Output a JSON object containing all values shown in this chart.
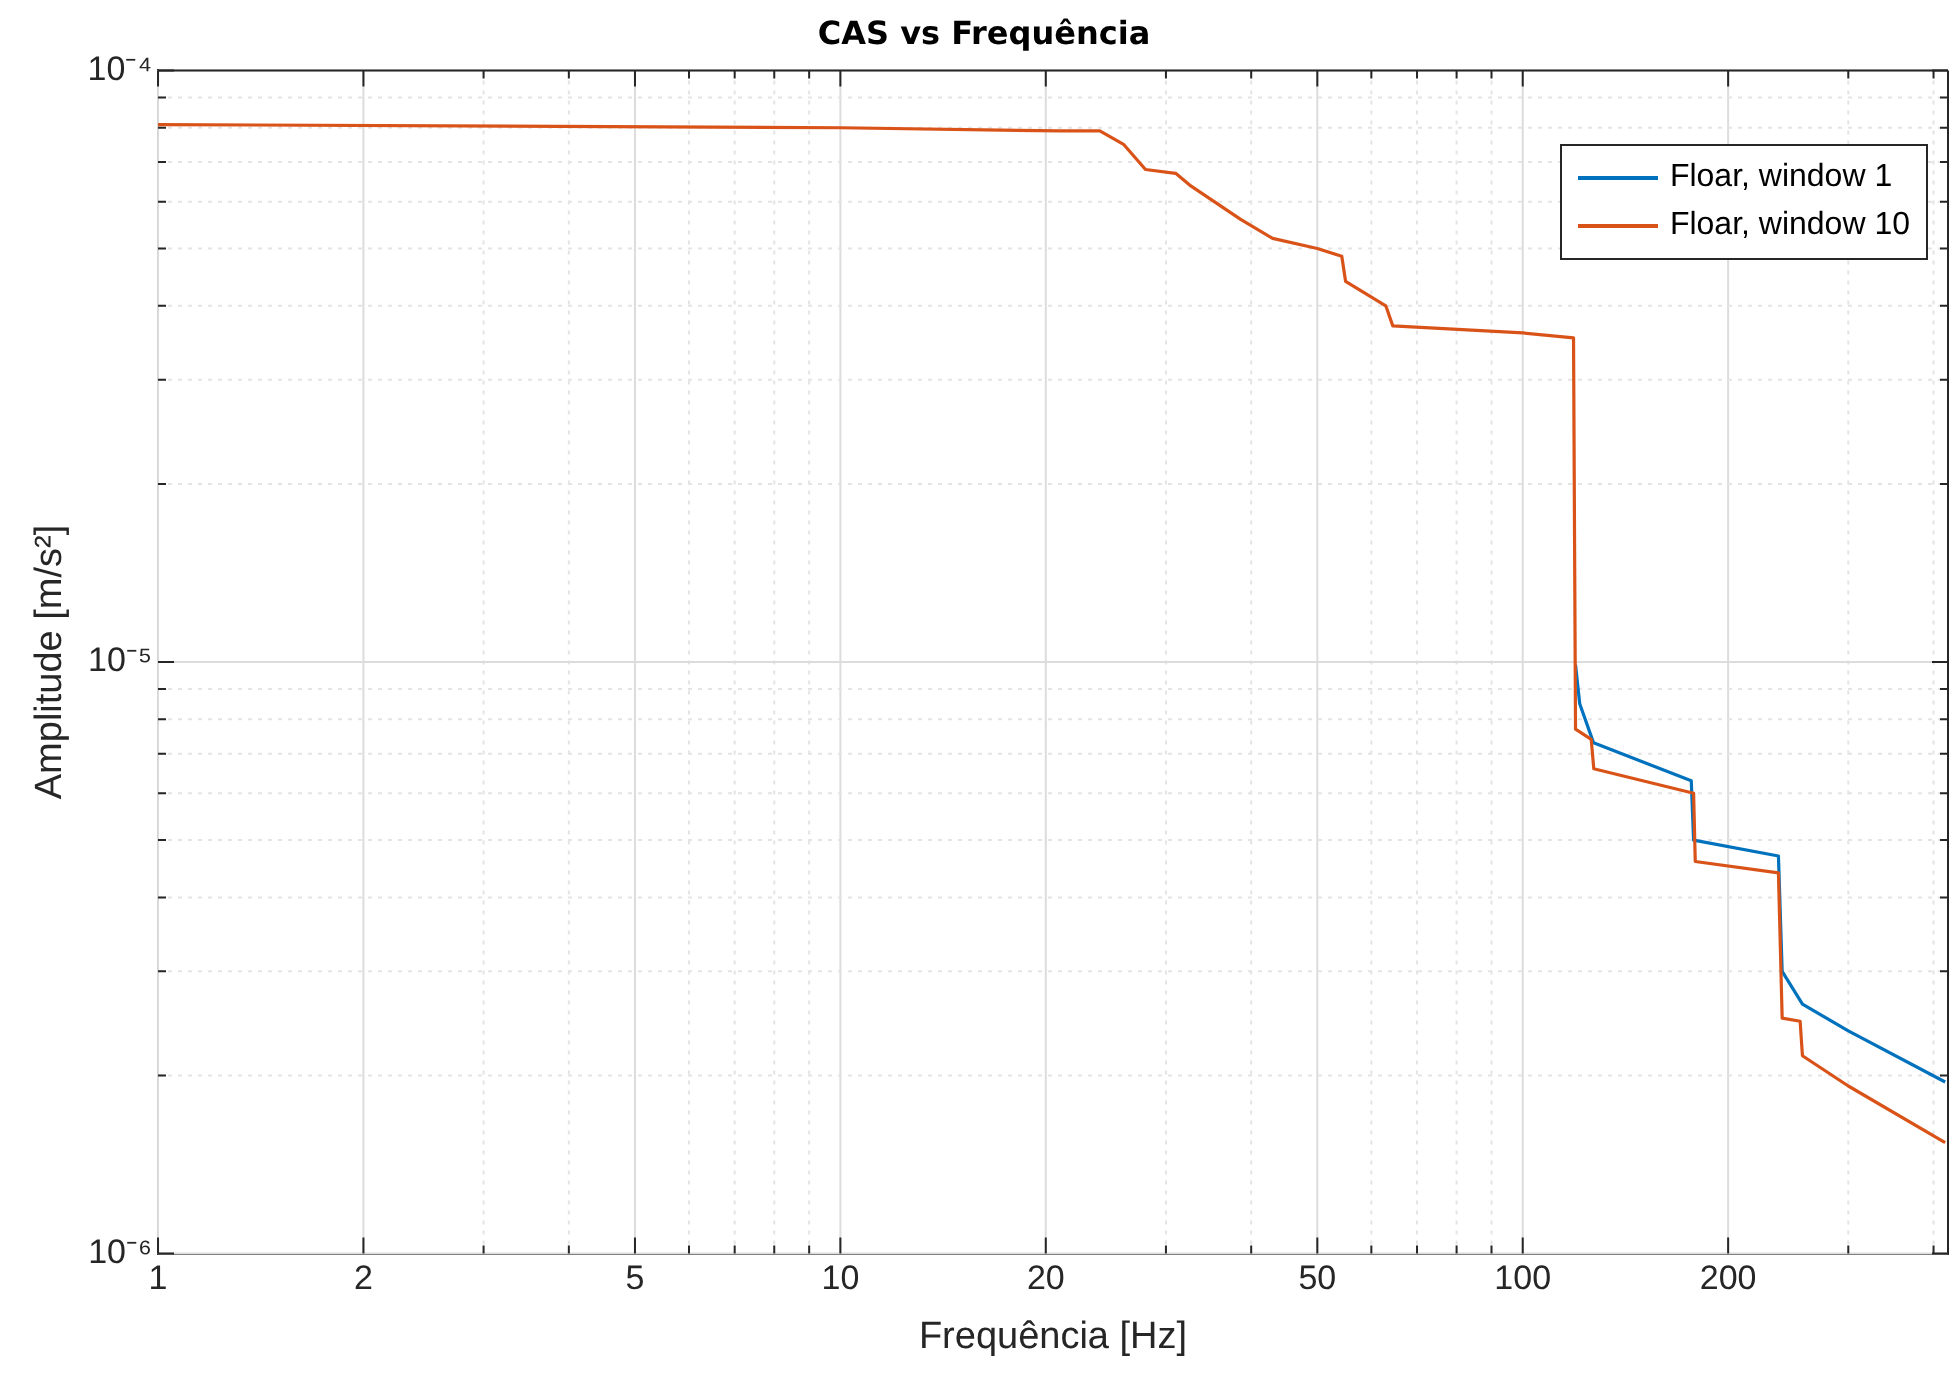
{
  "chart_data": {
    "type": "line",
    "title": "CAS vs Frequência",
    "xlabel": "Frequência [Hz]",
    "ylabel": "Amplitude [m/s²]",
    "log": "xy",
    "grid": true,
    "legend": "top right",
    "marker": "none",
    "line_style": "solid",
    "xlim": [
      1,
      420
    ],
    "ylim": [
      1e-06,
      0.0001
    ],
    "xticks": [
      1,
      2,
      {
        "value": 3,
        "label": null
      },
      {
        "value": 4,
        "label": null
      },
      5,
      {
        "value": 6,
        "label": null
      },
      {
        "value": 7,
        "label": null
      },
      {
        "value": 8,
        "label": null
      },
      {
        "value": 9,
        "label": null
      },
      10,
      20,
      {
        "value": 30,
        "label": null
      },
      {
        "value": 40,
        "label": null
      },
      50,
      {
        "value": 60,
        "label": null
      },
      {
        "value": 70,
        "label": null
      },
      {
        "value": 80,
        "label": null
      },
      {
        "value": 90,
        "label": null
      },
      100,
      200,
      {
        "value": 300,
        "label": null
      },
      {
        "value": 400,
        "label": null
      }
    ],
    "yticks": [
      {
        "value": 1e-06,
        "label": "10⁻⁶"
      },
      {
        "value": 2e-06,
        "label": null
      },
      {
        "value": 3e-06,
        "label": null
      },
      {
        "value": 4e-06,
        "label": null
      },
      {
        "value": 5e-06,
        "label": null
      },
      {
        "value": 6e-06,
        "label": null
      },
      {
        "value": 7e-06,
        "label": null
      },
      {
        "value": 8e-06,
        "label": null
      },
      {
        "value": 9e-06,
        "label": null
      },
      {
        "value": 1e-05,
        "label": "10⁻⁵"
      },
      {
        "value": 2e-05,
        "label": null
      },
      {
        "value": 3e-05,
        "label": null
      },
      {
        "value": 4e-05,
        "label": null
      },
      {
        "value": 5e-05,
        "label": null
      },
      {
        "value": 6e-05,
        "label": null
      },
      {
        "value": 7e-05,
        "label": null
      },
      {
        "value": 8e-05,
        "label": null
      },
      {
        "value": 9e-05,
        "label": null
      },
      {
        "value": 0.0001,
        "label": "10⁻⁴"
      }
    ],
    "series": [
      {
        "name": "Floar, window 1",
        "color": "#0072bd",
        "x": [
          119.5,
          121.2,
          127,
          176.6,
          178,
          237,
          240,
          257,
          300,
          416
        ],
        "values": [
          9.9e-06,
          8.5e-06,
          7.3e-06,
          6.3e-06,
          5e-06,
          4.7e-06,
          3e-06,
          2.64e-06,
          2.38e-06,
          1.95e-06
        ]
      },
      {
        "name": "Floar, window 10",
        "color": "#d95319",
        "x": [
          1,
          10,
          21,
          24,
          26,
          28,
          31,
          32.5,
          38.6,
          43,
          50,
          54.3,
          55,
          63,
          64.5,
          100,
          118.7,
          119.5,
          126,
          127.1,
          178,
          179,
          237,
          240,
          255,
          257,
          300,
          416
        ],
        "values": [
          8.1e-05,
          8e-05,
          7.9e-05,
          7.9e-05,
          7.5e-05,
          6.8e-05,
          6.7e-05,
          6.4e-05,
          5.6e-05,
          5.2e-05,
          5e-05,
          4.85e-05,
          4.4e-05,
          4e-05,
          3.7e-05,
          3.6e-05,
          3.53e-05,
          7.7e-06,
          7.4e-06,
          6.6e-06,
          6e-06,
          4.6e-06,
          4.4e-06,
          2.5e-06,
          2.47e-06,
          2.16e-06,
          1.92e-06,
          1.54e-06
        ]
      }
    ]
  }
}
